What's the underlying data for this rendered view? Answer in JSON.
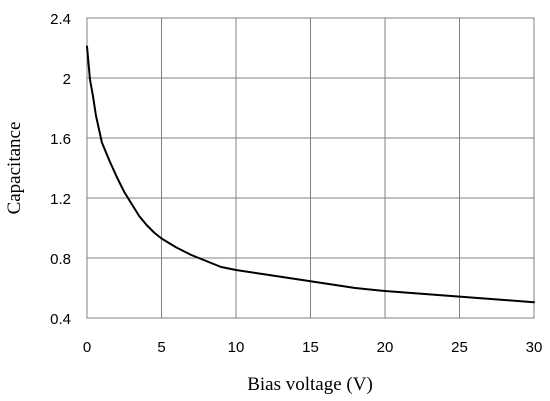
{
  "chart_data": {
    "type": "line",
    "title": "",
    "xlabel": "Bias voltage (V)",
    "ylabel": "Capacitance",
    "xlim": [
      0,
      30
    ],
    "ylim": [
      0.4,
      2.4
    ],
    "xticks": [
      0,
      5,
      10,
      15,
      20,
      25,
      30
    ],
    "yticks": [
      0.4,
      0.8,
      1.2,
      1.6,
      2,
      2.4
    ],
    "xtick_labels": [
      "0",
      "5",
      "10",
      "15",
      "20",
      "25",
      "30"
    ],
    "ytick_labels": [
      "0.4",
      "0.8",
      "1.2",
      "1.6",
      "2",
      "2.4"
    ],
    "grid": true,
    "legend": "none",
    "series": [
      {
        "color": "#000000",
        "x": [
          0,
          0.1,
          0.2,
          0.4,
          0.6,
          0.8,
          1.0,
          1.5,
          2.0,
          2.5,
          3.0,
          3.5,
          4.0,
          4.5,
          5.0,
          6.0,
          7.0,
          8.0,
          9.0,
          10.0,
          12.0,
          14.0,
          16.0,
          18.0,
          20.0,
          22.0,
          24.0,
          26.0,
          28.0,
          30.0
        ],
        "y": [
          2.21,
          2.1,
          1.99,
          1.88,
          1.75,
          1.66,
          1.57,
          1.45,
          1.34,
          1.24,
          1.16,
          1.08,
          1.02,
          0.97,
          0.93,
          0.87,
          0.82,
          0.78,
          0.74,
          0.72,
          0.69,
          0.66,
          0.63,
          0.6,
          0.58,
          0.565,
          0.55,
          0.535,
          0.52,
          0.505
        ]
      }
    ]
  }
}
